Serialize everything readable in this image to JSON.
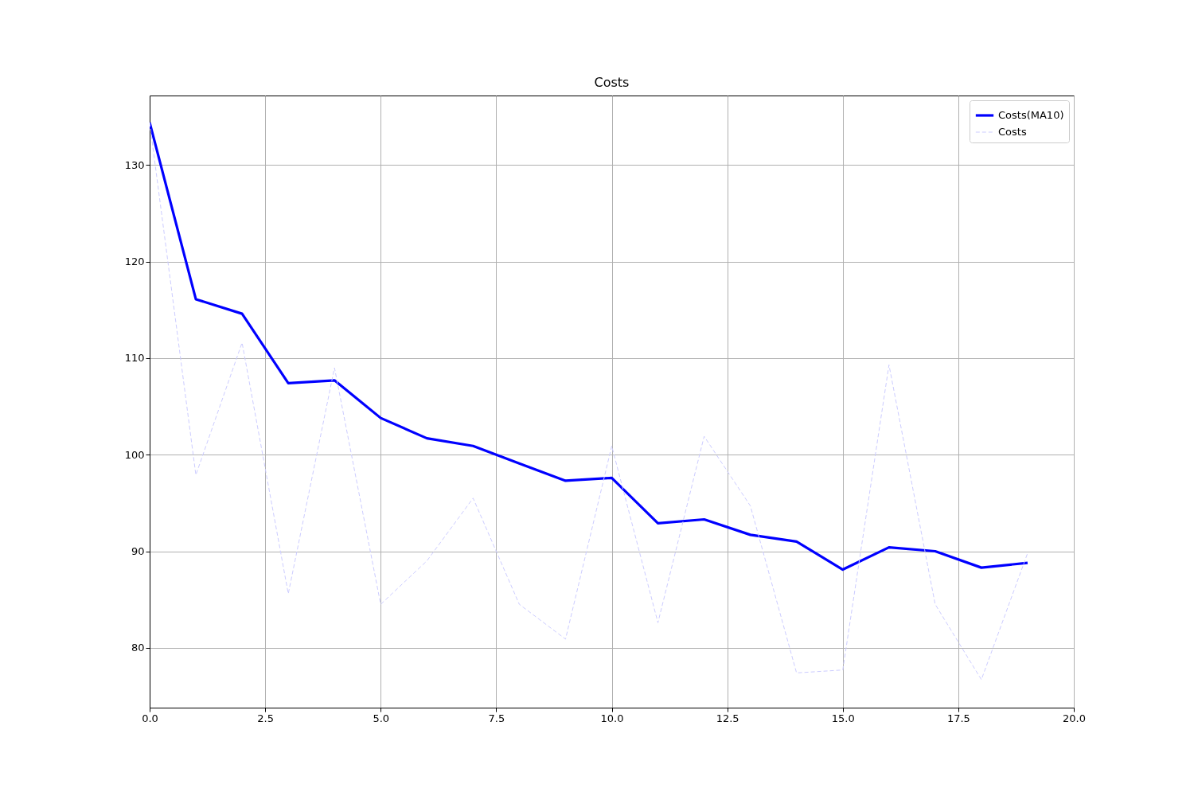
{
  "chart_data": {
    "type": "line",
    "title": "Costs",
    "x": [
      0,
      1,
      2,
      3,
      4,
      5,
      6,
      7,
      8,
      9,
      10,
      11,
      12,
      13,
      14,
      15,
      16,
      17,
      18,
      19
    ],
    "series": [
      {
        "name": "Costs(MA10)",
        "color": "#0000ff",
        "line_style": "solid",
        "values": [
          134.4,
          116.1,
          114.6,
          107.4,
          107.7,
          103.8,
          101.7,
          100.9,
          99.1,
          97.3,
          97.6,
          92.9,
          93.3,
          91.7,
          91.0,
          88.1,
          90.4,
          90.0,
          88.3,
          88.8
        ]
      },
      {
        "name": "Costs",
        "color": "#ccccff",
        "line_style": "dashed",
        "values": [
          134.4,
          97.9,
          111.6,
          85.6,
          109.0,
          84.5,
          89.0,
          95.5,
          84.5,
          80.9,
          100.9,
          82.6,
          101.9,
          94.7,
          77.4,
          77.7,
          109.3,
          84.5,
          76.7,
          89.8
        ]
      }
    ],
    "xlim": [
      0,
      20
    ],
    "xticks": [
      {
        "value": 0,
        "label": "0.0"
      },
      {
        "value": 2.5,
        "label": "2.5"
      },
      {
        "value": 5,
        "label": "5.0"
      },
      {
        "value": 7.5,
        "label": "7.5"
      },
      {
        "value": 10,
        "label": "10.0"
      },
      {
        "value": 12.5,
        "label": "12.5"
      },
      {
        "value": 15,
        "label": "15.0"
      },
      {
        "value": 17.5,
        "label": "17.5"
      },
      {
        "value": 20,
        "label": "20.0"
      }
    ],
    "ylim": [
      73.8,
      137.2
    ],
    "yticks": [
      80,
      90,
      100,
      110,
      120,
      130
    ],
    "grid": true,
    "legend": "top right"
  }
}
